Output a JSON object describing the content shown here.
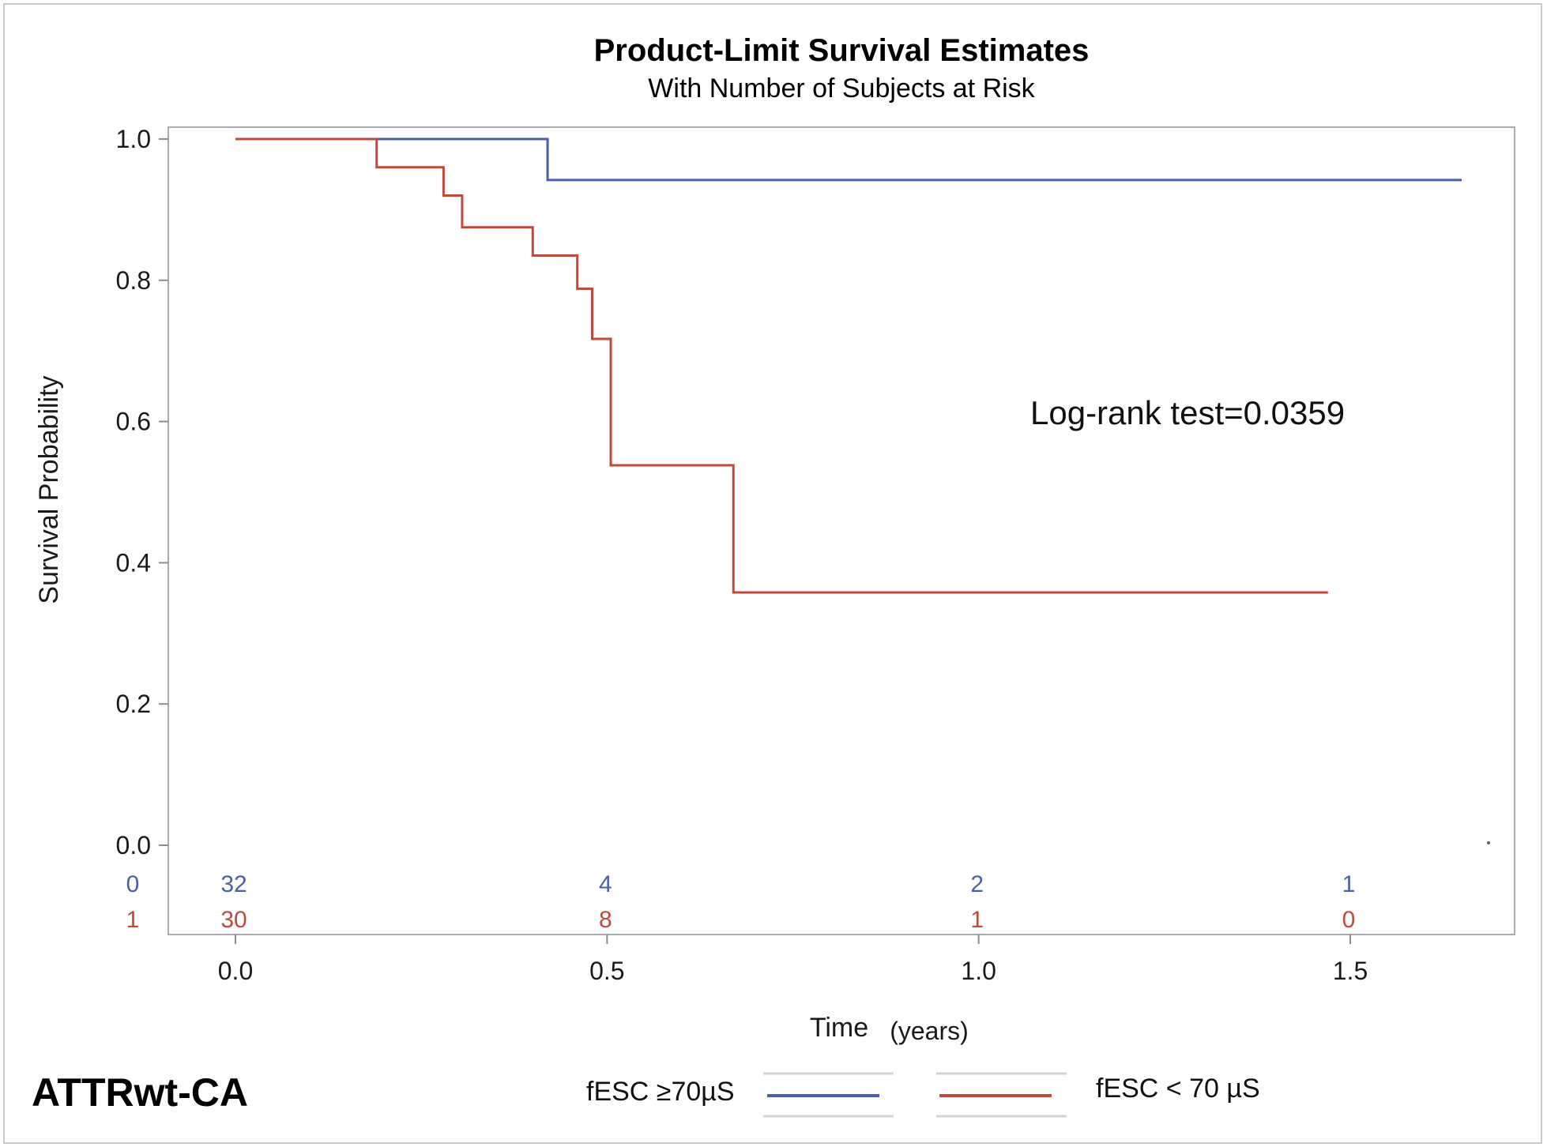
{
  "chart_data": {
    "type": "line",
    "title": "Product-Limit Survival Estimates",
    "subtitle": "With Number of Subjects at Risk",
    "xlabel": "Time",
    "xlabel_unit": "(years)",
    "ylabel": "Survival Probability",
    "xlim": [
      -0.09,
      1.72
    ],
    "ylim": [
      0.0,
      1.0
    ],
    "xticks": [
      0.0,
      0.5,
      1.0,
      1.5
    ],
    "xtick_labels": [
      "0.0",
      "0.5",
      "1.0",
      "1.5"
    ],
    "yticks": [
      0.0,
      0.2,
      0.4,
      0.6,
      0.8,
      1.0
    ],
    "ytick_labels": [
      "0.0",
      "0.2",
      "0.4",
      "0.6",
      "0.8",
      "1.0"
    ],
    "grid": false,
    "legend_position": "bottom",
    "annotation": "Log-rank test=0.0359",
    "panel_label": "ATTRwt-CA",
    "series": [
      {
        "name": "fESC ≥70µS",
        "color": "#4a5fad",
        "step_x": [
          0.0,
          0.42,
          1.65
        ],
        "step_y": [
          1.0,
          0.942,
          0.942
        ],
        "risk_group_label": "0",
        "at_risk": [
          "32",
          "4",
          "2",
          "1"
        ]
      },
      {
        "name": "fESC < 70 µS",
        "color": "#bf4a3a",
        "step_x": [
          0.0,
          0.19,
          0.28,
          0.305,
          0.4,
          0.46,
          0.48,
          0.505,
          0.67,
          1.47
        ],
        "step_y": [
          1.0,
          0.96,
          0.92,
          0.875,
          0.835,
          0.788,
          0.717,
          0.538,
          0.358,
          0.358
        ],
        "risk_group_label": "1",
        "at_risk": [
          "30",
          "8",
          "1",
          "0"
        ]
      }
    ],
    "at_risk_times": [
      0.0,
      0.5,
      1.0,
      1.5
    ]
  }
}
